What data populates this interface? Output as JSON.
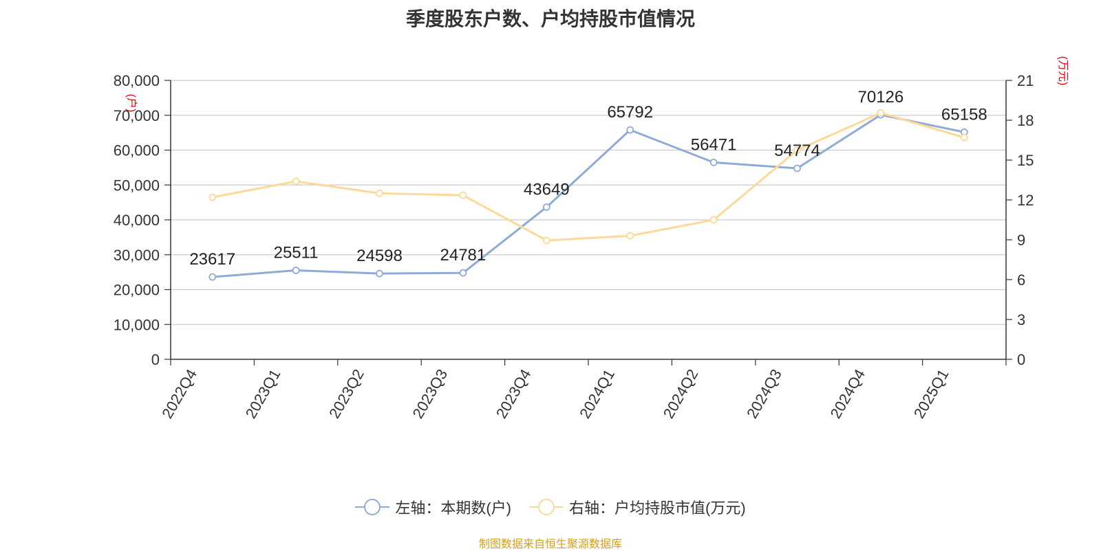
{
  "title": "季度股东户数、户均持股市值情况",
  "source_note": "制图数据来自恒生聚源数据库",
  "colors": {
    "series_left": "#8eabd8",
    "series_right": "#fdd998",
    "axis_unit": "#e8000b",
    "source": "#d4a017",
    "grid": "#cccccc",
    "axis": "#333333"
  },
  "chart_data": {
    "type": "line",
    "categories": [
      "2022Q4",
      "2023Q1",
      "2023Q2",
      "2023Q3",
      "2023Q4",
      "2024Q1",
      "2024Q2",
      "2024Q3",
      "2024Q4",
      "2025Q1"
    ],
    "left_axis": {
      "unit_label": "(户)",
      "ylim": [
        0,
        80000
      ],
      "ticks": [
        0,
        10000,
        20000,
        30000,
        40000,
        50000,
        60000,
        70000,
        80000
      ],
      "tick_labels": [
        "0",
        "10,000",
        "20,000",
        "30,000",
        "40,000",
        "50,000",
        "60,000",
        "70,000",
        "80,000"
      ]
    },
    "right_axis": {
      "unit_label": "(万元)",
      "ylim": [
        0,
        21
      ],
      "ticks": [
        0,
        3,
        6,
        9,
        12,
        15,
        18,
        21
      ],
      "tick_labels": [
        "0",
        "3",
        "6",
        "9",
        "12",
        "15",
        "18",
        "21"
      ]
    },
    "series": [
      {
        "name": "左轴：本期数(户)",
        "axis": "left",
        "values": [
          23617,
          25511,
          24598,
          24781,
          43649,
          65792,
          56471,
          54774,
          70126,
          65158
        ],
        "labels": [
          "23617",
          "25511",
          "24598",
          "24781",
          "43649",
          "65792",
          "56471",
          "54774",
          "70126",
          "65158"
        ]
      },
      {
        "name": "右轴：户均持股市值(万元)",
        "axis": "right",
        "values": [
          12.2,
          13.4,
          12.5,
          12.35,
          8.95,
          9.3,
          10.5,
          15.75,
          18.55,
          16.7
        ]
      }
    ],
    "grid": true,
    "legend_position": "bottom"
  }
}
